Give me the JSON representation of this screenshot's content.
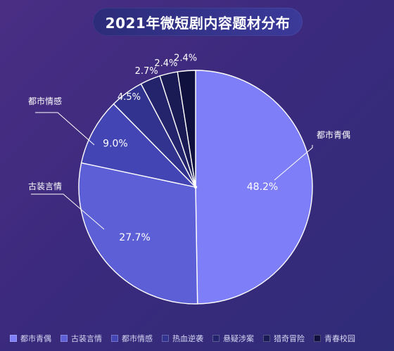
{
  "chart_data": {
    "type": "pie",
    "title": "2021年微短剧内容题材分布",
    "slices": [
      {
        "label": "都市青偶",
        "value": 48.2,
        "display": "48.2%",
        "color": "#7e7ef8"
      },
      {
        "label": "古装言情",
        "value": 27.7,
        "display": "27.7%",
        "color": "#5d5fd6"
      },
      {
        "label": "都市情感",
        "value": 9.0,
        "display": "9.0%",
        "color": "#4445b4"
      },
      {
        "label": "热血逆袭",
        "value": 4.5,
        "display": "4.5%",
        "color": "#32338e"
      },
      {
        "label": "悬疑涉案",
        "value": 2.7,
        "display": "2.7%",
        "color": "#24246c"
      },
      {
        "label": "猎奇冒险",
        "value": 2.4,
        "display": "2.4%",
        "color": "#1a1a55"
      },
      {
        "label": "青春校园",
        "value": 2.4,
        "display": "2.4%",
        "color": "#10103e"
      }
    ],
    "callouts": [
      "都市青偶",
      "古装言情",
      "都市情感"
    ],
    "legend_position": "bottom"
  }
}
